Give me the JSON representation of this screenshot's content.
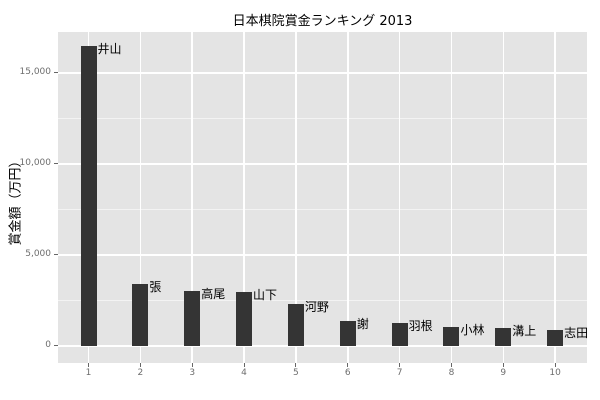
{
  "chart_data": {
    "type": "bar",
    "title": "日本棋院賞金ランキング 2013",
    "xlabel": "",
    "ylabel": "賞金額（万円）",
    "categories": [
      "1",
      "2",
      "3",
      "4",
      "5",
      "6",
      "7",
      "8",
      "9",
      "10"
    ],
    "values": [
      16450,
      3400,
      3000,
      2950,
      2300,
      1350,
      1250,
      1020,
      960,
      870
    ],
    "point_labels": [
      "井山",
      "張",
      "高尾",
      "山下",
      "河野",
      "謝",
      "羽根",
      "小林",
      "溝上",
      "志田"
    ],
    "yticks": {
      "values": [
        0,
        5000,
        10000,
        15000
      ],
      "labels": [
        "0",
        "5,000",
        "10,000",
        "15,000"
      ]
    },
    "yticks_minor": [
      2500,
      7500,
      12500
    ],
    "ylim": [
      -900,
      17300
    ],
    "grid": "major-horizontal, minor-horizontal, major-vertical",
    "legend": "none",
    "colors": {
      "figure_bg": "#ffffff",
      "panel_bg": "#e4e4e4",
      "bar": "#343434",
      "grid_major": "#ffffff",
      "axis_text": "#6e6e6e",
      "title_text": "#000000",
      "label_text": "#000000"
    }
  }
}
